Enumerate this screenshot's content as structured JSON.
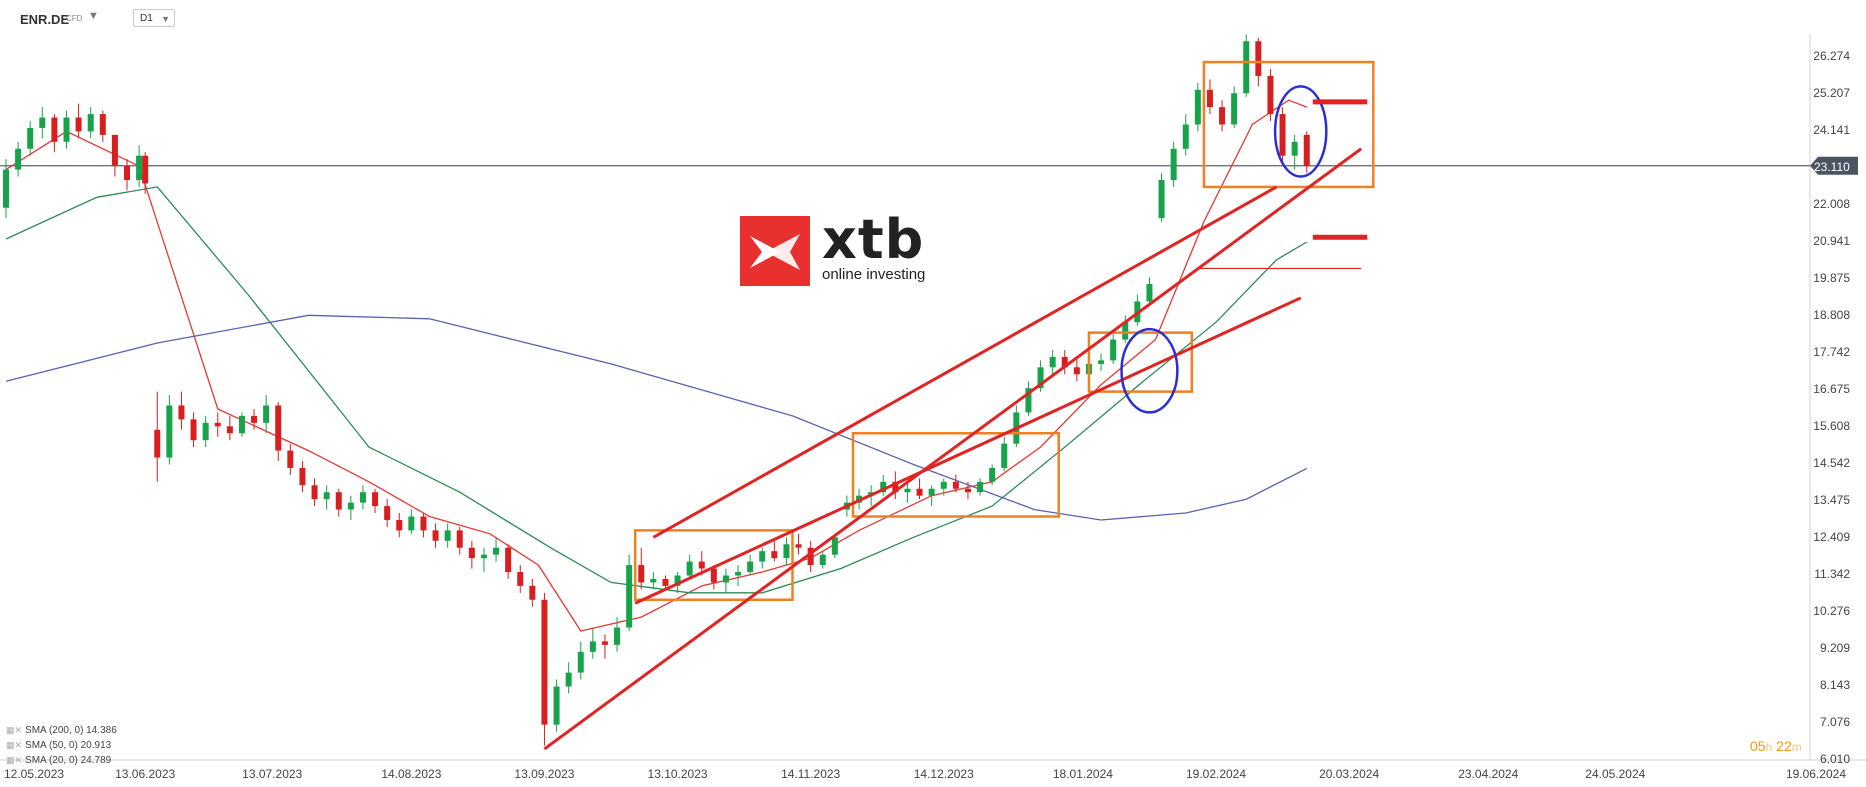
{
  "header": {
    "symbol": "ENR.DE",
    "instrument_type": "CFD",
    "timeframe": "D1"
  },
  "logo": {
    "brand": "xtb",
    "tagline": "online investing"
  },
  "countdown": {
    "hours": "05",
    "h": "h",
    "minutes": "22",
    "m": "m"
  },
  "legend": [
    {
      "text": "SMA (200, 0) 14.386"
    },
    {
      "text": "SMA (50, 0) 20.913"
    },
    {
      "text": "SMA (20, 0) 24.789"
    }
  ],
  "colors": {
    "up": "#16a34a",
    "down": "#d81e1e",
    "sma20": "#e53935",
    "sma50": "#2e8b57",
    "sma200": "#5b62b0",
    "annotation_box": "#f08020",
    "trendline": "#e02424",
    "circle": "#2c2fd0"
  },
  "chart_data": {
    "type": "candlestick",
    "ylim": [
      6.01,
      27.2
    ],
    "y_ticks": [
      "26.274",
      "25.207",
      "24.141",
      "23.110",
      "22.008",
      "20.941",
      "19.875",
      "18.808",
      "17.742",
      "16.675",
      "15.608",
      "14.542",
      "13.475",
      "12.409",
      "11.342",
      "10.276",
      "9.209",
      "8.143",
      "7.076",
      "6.010"
    ],
    "x_ticks": [
      "12.05.2023",
      "13.06.2023",
      "13.07.2023",
      "14.08.2023",
      "13.09.2023",
      "13.10.2023",
      "14.11.2023",
      "14.12.2023",
      "18.01.2024",
      "19.02.2024",
      "20.03.2024",
      "23.04.2024",
      "24.05.2024",
      "19.06.2024"
    ],
    "x_tick_index": [
      0,
      23,
      44,
      67,
      89,
      111,
      133,
      155,
      178,
      200,
      222,
      245,
      266,
      287
    ],
    "current_price": "23.110",
    "current_price_value": 23.11,
    "candles": [
      [
        0,
        21.9,
        23.3,
        21.6,
        23.0
      ],
      [
        2,
        23.0,
        23.8,
        22.8,
        23.6
      ],
      [
        4,
        23.6,
        24.4,
        23.4,
        24.2
      ],
      [
        6,
        24.2,
        24.8,
        23.9,
        24.5
      ],
      [
        8,
        24.5,
        24.6,
        23.5,
        23.8
      ],
      [
        10,
        23.8,
        24.7,
        23.6,
        24.5
      ],
      [
        12,
        24.5,
        24.9,
        23.9,
        24.1
      ],
      [
        14,
        24.1,
        24.8,
        23.9,
        24.6
      ],
      [
        16,
        24.6,
        24.7,
        23.8,
        24.0
      ],
      [
        18,
        24.0,
        23.9,
        22.8,
        23.1
      ],
      [
        20,
        23.1,
        23.3,
        22.4,
        22.7
      ],
      [
        22,
        22.7,
        23.7,
        22.5,
        23.4
      ],
      [
        23,
        23.4,
        23.5,
        22.3,
        22.6
      ],
      [
        25,
        15.5,
        16.6,
        14.0,
        14.7
      ],
      [
        27,
        14.7,
        16.5,
        14.5,
        16.2
      ],
      [
        29,
        16.2,
        16.6,
        15.5,
        15.8
      ],
      [
        31,
        15.8,
        16.0,
        15.0,
        15.2
      ],
      [
        33,
        15.2,
        15.9,
        15.0,
        15.7
      ],
      [
        35,
        15.7,
        16.0,
        15.3,
        15.6
      ],
      [
        37,
        15.6,
        15.9,
        15.2,
        15.4
      ],
      [
        39,
        15.4,
        16.0,
        15.3,
        15.9
      ],
      [
        41,
        15.9,
        16.1,
        15.5,
        15.7
      ],
      [
        43,
        15.7,
        16.5,
        15.4,
        16.2
      ],
      [
        45,
        16.2,
        16.3,
        14.6,
        14.9
      ],
      [
        47,
        14.9,
        15.1,
        14.2,
        14.4
      ],
      [
        49,
        14.4,
        14.6,
        13.7,
        13.9
      ],
      [
        51,
        13.9,
        14.1,
        13.3,
        13.5
      ],
      [
        53,
        13.5,
        13.9,
        13.2,
        13.7
      ],
      [
        55,
        13.7,
        13.8,
        13.0,
        13.2
      ],
      [
        57,
        13.2,
        13.6,
        12.9,
        13.4
      ],
      [
        59,
        13.4,
        13.9,
        13.2,
        13.7
      ],
      [
        61,
        13.7,
        13.8,
        13.1,
        13.3
      ],
      [
        63,
        13.3,
        13.5,
        12.7,
        12.9
      ],
      [
        65,
        12.9,
        13.1,
        12.4,
        12.6
      ],
      [
        67,
        12.6,
        13.2,
        12.5,
        13.0
      ],
      [
        69,
        13.0,
        13.1,
        12.4,
        12.6
      ],
      [
        71,
        12.6,
        12.8,
        12.1,
        12.3
      ],
      [
        73,
        12.3,
        12.8,
        12.1,
        12.6
      ],
      [
        75,
        12.6,
        12.7,
        11.9,
        12.1
      ],
      [
        77,
        12.1,
        12.3,
        11.5,
        11.8
      ],
      [
        79,
        11.8,
        12.1,
        11.4,
        11.9
      ],
      [
        81,
        11.9,
        12.4,
        11.7,
        12.1
      ],
      [
        83,
        12.1,
        12.2,
        11.2,
        11.4
      ],
      [
        85,
        11.4,
        11.6,
        10.8,
        11.0
      ],
      [
        87,
        11.0,
        11.2,
        10.4,
        10.6
      ],
      [
        89,
        10.6,
        10.8,
        6.4,
        7.0
      ],
      [
        91,
        7.0,
        8.3,
        6.8,
        8.1
      ],
      [
        93,
        8.1,
        8.8,
        7.9,
        8.5
      ],
      [
        95,
        8.5,
        9.4,
        8.3,
        9.1
      ],
      [
        97,
        9.1,
        9.8,
        8.9,
        9.4
      ],
      [
        99,
        9.4,
        9.6,
        8.9,
        9.3
      ],
      [
        101,
        9.3,
        10.1,
        9.1,
        9.8
      ],
      [
        103,
        9.8,
        11.9,
        9.7,
        11.6
      ],
      [
        105,
        11.6,
        12.1,
        10.9,
        11.1
      ],
      [
        107,
        11.1,
        11.4,
        10.9,
        11.2
      ],
      [
        109,
        11.2,
        11.3,
        10.9,
        11.0
      ],
      [
        111,
        11.0,
        11.4,
        10.8,
        11.3
      ],
      [
        113,
        11.3,
        11.9,
        11.2,
        11.7
      ],
      [
        115,
        11.7,
        12.0,
        11.3,
        11.5
      ],
      [
        117,
        11.5,
        11.6,
        10.9,
        11.1
      ],
      [
        119,
        11.1,
        11.5,
        10.8,
        11.3
      ],
      [
        121,
        11.3,
        11.6,
        11.0,
        11.4
      ],
      [
        123,
        11.4,
        11.9,
        11.3,
        11.7
      ],
      [
        125,
        11.7,
        12.1,
        11.5,
        12.0
      ],
      [
        127,
        12.0,
        12.3,
        11.7,
        11.8
      ],
      [
        129,
        11.8,
        12.4,
        11.6,
        12.2
      ],
      [
        131,
        12.2,
        12.5,
        11.9,
        12.1
      ],
      [
        133,
        12.1,
        12.3,
        11.4,
        11.6
      ],
      [
        135,
        11.6,
        12.0,
        11.5,
        11.9
      ],
      [
        137,
        11.9,
        12.5,
        11.8,
        12.4
      ],
      [
        139,
        13.2,
        13.6,
        13.0,
        13.4
      ],
      [
        141,
        13.4,
        13.8,
        13.2,
        13.6
      ],
      [
        143,
        13.6,
        13.9,
        13.3,
        13.7
      ],
      [
        145,
        13.7,
        14.2,
        13.6,
        14.0
      ],
      [
        147,
        14.0,
        14.3,
        13.5,
        13.7
      ],
      [
        149,
        13.7,
        14.0,
        13.4,
        13.8
      ],
      [
        151,
        13.8,
        14.1,
        13.5,
        13.6
      ],
      [
        153,
        13.6,
        13.9,
        13.3,
        13.8
      ],
      [
        155,
        13.8,
        14.1,
        13.6,
        14.0
      ],
      [
        157,
        14.0,
        14.2,
        13.7,
        13.8
      ],
      [
        159,
        13.8,
        14.0,
        13.5,
        13.7
      ],
      [
        161,
        13.7,
        14.1,
        13.6,
        14.0
      ],
      [
        163,
        14.0,
        14.5,
        13.9,
        14.4
      ],
      [
        165,
        14.4,
        15.3,
        14.3,
        15.1
      ],
      [
        167,
        15.1,
        16.2,
        15.0,
        16.0
      ],
      [
        169,
        16.0,
        16.9,
        15.9,
        16.7
      ],
      [
        171,
        16.7,
        17.5,
        16.6,
        17.3
      ],
      [
        173,
        17.3,
        17.8,
        17.0,
        17.6
      ],
      [
        175,
        17.6,
        17.8,
        17.1,
        17.3
      ],
      [
        177,
        17.3,
        17.6,
        16.9,
        17.1
      ],
      [
        179,
        17.1,
        17.5,
        16.8,
        17.4
      ],
      [
        181,
        17.4,
        17.7,
        17.2,
        17.5
      ],
      [
        183,
        17.5,
        18.3,
        17.4,
        18.1
      ],
      [
        185,
        18.1,
        18.8,
        18.0,
        18.6
      ],
      [
        187,
        18.6,
        19.4,
        18.5,
        19.2
      ],
      [
        189,
        19.2,
        19.9,
        19.1,
        19.7
      ],
      [
        191,
        21.6,
        22.9,
        21.5,
        22.7
      ],
      [
        193,
        22.7,
        23.8,
        22.5,
        23.6
      ],
      [
        195,
        23.6,
        24.6,
        23.4,
        24.3
      ],
      [
        197,
        24.3,
        25.5,
        24.1,
        25.3
      ],
      [
        199,
        25.3,
        25.6,
        24.6,
        24.8
      ],
      [
        201,
        24.8,
        25.0,
        24.1,
        24.3
      ],
      [
        203,
        24.3,
        25.4,
        24.2,
        25.2
      ],
      [
        205,
        25.2,
        26.9,
        25.1,
        26.7
      ],
      [
        207,
        26.7,
        26.8,
        25.4,
        25.7
      ],
      [
        209,
        25.7,
        25.9,
        24.4,
        24.6
      ],
      [
        211,
        24.6,
        24.8,
        23.1,
        23.4
      ],
      [
        213,
        23.4,
        24.0,
        23.0,
        23.8
      ],
      [
        215,
        24.0,
        24.1,
        22.9,
        23.1
      ]
    ],
    "series": [
      {
        "name": "SMA (20, 0)",
        "values": [
          [
            0,
            23.0
          ],
          [
            10,
            24.1
          ],
          [
            22,
            23.1
          ],
          [
            35,
            16.1
          ],
          [
            50,
            14.9
          ],
          [
            60,
            14.0
          ],
          [
            70,
            13.0
          ],
          [
            80,
            12.5
          ],
          [
            88,
            11.6
          ],
          [
            95,
            9.7
          ],
          [
            105,
            10.1
          ],
          [
            115,
            11.0
          ],
          [
            125,
            11.4
          ],
          [
            133,
            11.8
          ],
          [
            141,
            12.6
          ],
          [
            153,
            13.6
          ],
          [
            163,
            14.0
          ],
          [
            171,
            15.0
          ],
          [
            181,
            16.8
          ],
          [
            190,
            18.1
          ],
          [
            198,
            21.5
          ],
          [
            206,
            24.3
          ],
          [
            212,
            25.0
          ],
          [
            215,
            24.8
          ]
        ]
      },
      {
        "name": "SMA (50, 0)",
        "values": [
          [
            0,
            21.0
          ],
          [
            15,
            22.2
          ],
          [
            25,
            22.5
          ],
          [
            40,
            19.4
          ],
          [
            60,
            15.0
          ],
          [
            75,
            13.7
          ],
          [
            90,
            12.1
          ],
          [
            100,
            11.1
          ],
          [
            113,
            10.8
          ],
          [
            125,
            10.8
          ],
          [
            138,
            11.5
          ],
          [
            150,
            12.4
          ],
          [
            163,
            13.3
          ],
          [
            175,
            15.0
          ],
          [
            188,
            16.9
          ],
          [
            200,
            18.6
          ],
          [
            210,
            20.4
          ],
          [
            215,
            20.913
          ]
        ]
      },
      {
        "name": "SMA (200, 0)",
        "values": [
          [
            0,
            16.9
          ],
          [
            25,
            18.0
          ],
          [
            50,
            18.8
          ],
          [
            70,
            18.7
          ],
          [
            100,
            17.4
          ],
          [
            130,
            15.9
          ],
          [
            150,
            14.5
          ],
          [
            170,
            13.2
          ],
          [
            181,
            12.9
          ],
          [
            195,
            13.1
          ],
          [
            205,
            13.5
          ],
          [
            215,
            14.386
          ]
        ]
      }
    ],
    "annotations": {
      "boxes": [
        [
          104,
          130,
          10.6,
          12.6
        ],
        [
          140,
          174,
          13.0,
          15.4
        ],
        [
          179,
          196,
          16.6,
          18.3
        ],
        [
          198,
          226,
          22.5,
          26.1
        ]
      ],
      "trendlines": [
        [
          89,
          6.3,
          224,
          23.6
        ],
        [
          107,
          12.4,
          210,
          22.5
        ],
        [
          104,
          10.5,
          214,
          19.3
        ]
      ],
      "circles": [
        [
          189,
          17.2,
          12,
          1.2
        ],
        [
          214,
          24.1,
          11,
          1.3
        ]
      ],
      "levels": [
        [
          216,
          225,
          24.95
        ],
        [
          216,
          225,
          21.05
        ],
        [
          197,
          224,
          20.15
        ]
      ]
    }
  }
}
